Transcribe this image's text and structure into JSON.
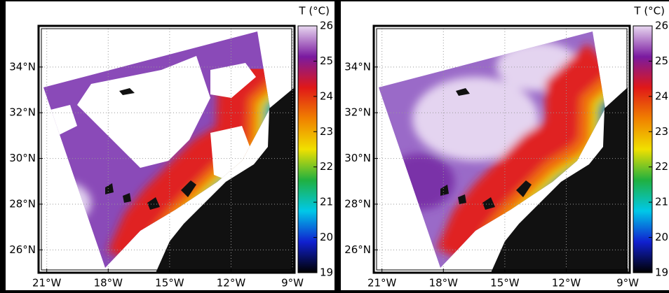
{
  "chart_data": [
    {
      "type": "map",
      "xlim": [
        -21.4,
        -8.9
      ],
      "ylim": [
        25.0,
        35.8
      ],
      "xticks": [
        {
          "value": -21,
          "label": "21°W"
        },
        {
          "value": -18,
          "label": "18°W"
        },
        {
          "value": -15,
          "label": "15°W"
        },
        {
          "value": -12,
          "label": "12°W"
        },
        {
          "value": -9,
          "label": "9°W"
        }
      ],
      "yticks": [
        {
          "value": 26,
          "label": "26°N"
        },
        {
          "value": 28,
          "label": "28°N"
        },
        {
          "value": 30,
          "label": "30°N"
        },
        {
          "value": 32,
          "label": "32°N"
        },
        {
          "value": 34,
          "label": "34°N"
        }
      ],
      "grid": true,
      "colorbar": {
        "label": "T (°C)",
        "clim": [
          19,
          26
        ],
        "ticks": [
          19,
          20,
          21,
          22,
          23,
          24,
          25,
          26
        ],
        "colormap": [
          "#000000",
          "#1020d0",
          "#00c8e8",
          "#20b040",
          "#f0e000",
          "#f08000",
          "#e01818",
          "#7a1aa0",
          "#e8d8f0"
        ]
      }
    },
    {
      "type": "map",
      "xlim": [
        -21.4,
        -8.9
      ],
      "ylim": [
        25.0,
        35.8
      ],
      "xticks": [
        {
          "value": -21,
          "label": "21°W"
        },
        {
          "value": -18,
          "label": "18°W"
        },
        {
          "value": -15,
          "label": "15°W"
        },
        {
          "value": -12,
          "label": "12°W"
        },
        {
          "value": -9,
          "label": "9°W"
        }
      ],
      "yticks": [
        {
          "value": 26,
          "label": "26°N"
        },
        {
          "value": 28,
          "label": "28°N"
        },
        {
          "value": 30,
          "label": "30°N"
        },
        {
          "value": 32,
          "label": "32°N"
        },
        {
          "value": 34,
          "label": "34°N"
        }
      ],
      "grid": true,
      "colorbar": {
        "label": "T (°C)",
        "clim": [
          19,
          26
        ],
        "ticks": [
          19,
          20,
          21,
          22,
          23,
          24,
          25,
          26
        ],
        "colormap": [
          "#000000",
          "#1020d0",
          "#00c8e8",
          "#20b040",
          "#f0e000",
          "#f08000",
          "#e01818",
          "#7a1aa0",
          "#e8d8f0"
        ]
      }
    }
  ]
}
